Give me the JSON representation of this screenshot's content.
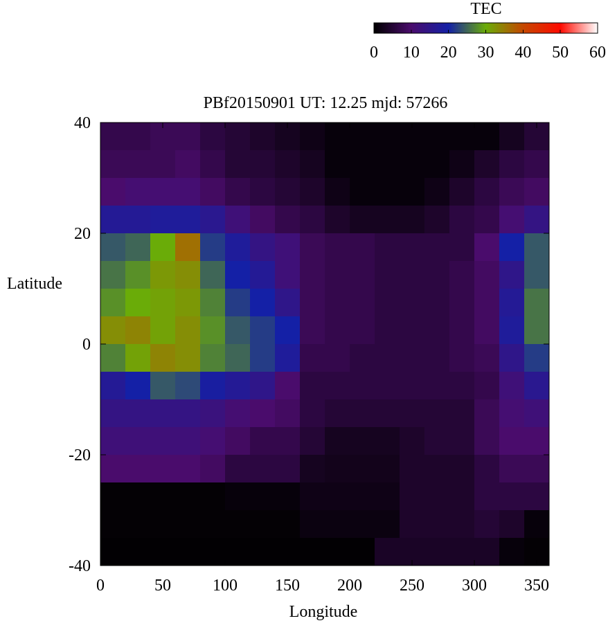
{
  "chart_data": {
    "type": "heatmap",
    "title": "PBf20150901  UT: 12.25  mjd: 57266",
    "x_label": "Longitude",
    "y_label": "Latitude",
    "x": [
      10,
      30,
      50,
      70,
      90,
      110,
      130,
      150,
      170,
      190,
      210,
      230,
      250,
      270,
      290,
      310,
      330,
      350
    ],
    "y": [
      37.5,
      32.5,
      27.5,
      22.5,
      17.5,
      12.5,
      7.5,
      2.5,
      -2.5,
      -7.5,
      -12.5,
      -17.5,
      -22.5,
      -27.5,
      -32.5,
      -37.5
    ],
    "values": [
      [
        7,
        7,
        8,
        8,
        6,
        5,
        4,
        3,
        2,
        1,
        1,
        1,
        1,
        1,
        1,
        1,
        3,
        5
      ],
      [
        8,
        8,
        8,
        9,
        7,
        5,
        5,
        4,
        3,
        1,
        1,
        1,
        1,
        1,
        2,
        4,
        6,
        7
      ],
      [
        10,
        11,
        11,
        11,
        9,
        7,
        6,
        5,
        4,
        2,
        1,
        1,
        1,
        2,
        4,
        6,
        8,
        9
      ],
      [
        17,
        17,
        18,
        18,
        16,
        12,
        9,
        7,
        6,
        4,
        3,
        3,
        3,
        4,
        6,
        7,
        11,
        14
      ],
      [
        24,
        25,
        30,
        36,
        22,
        18,
        14,
        12,
        8,
        7,
        7,
        6,
        6,
        6,
        6,
        10,
        20,
        24
      ],
      [
        26,
        28,
        32,
        33,
        25,
        20,
        17,
        12,
        8,
        7,
        7,
        6,
        6,
        6,
        7,
        9,
        15,
        24
      ],
      [
        28,
        30,
        31,
        32,
        27,
        22,
        20,
        15,
        8,
        7,
        7,
        6,
        6,
        6,
        7,
        9,
        17,
        26
      ],
      [
        33,
        34,
        31,
        33,
        28,
        24,
        22,
        20,
        8,
        7,
        7,
        6,
        6,
        6,
        7,
        9,
        18,
        26
      ],
      [
        27,
        31,
        34,
        33,
        27,
        25,
        22,
        18,
        7,
        7,
        6,
        6,
        6,
        6,
        7,
        8,
        15,
        22
      ],
      [
        17,
        20,
        24,
        23,
        19,
        17,
        15,
        10,
        6,
        6,
        6,
        6,
        6,
        6,
        6,
        7,
        12,
        16
      ],
      [
        14,
        14,
        14,
        14,
        13,
        11,
        10,
        9,
        6,
        5,
        5,
        5,
        5,
        5,
        5,
        8,
        11,
        12
      ],
      [
        12,
        12,
        12,
        12,
        11,
        9,
        7,
        7,
        5,
        3,
        3,
        3,
        4,
        5,
        5,
        8,
        10,
        10
      ],
      [
        10,
        10,
        10,
        10,
        9,
        6,
        6,
        6,
        3,
        2.5,
        2.5,
        2.5,
        4,
        4,
        4,
        6,
        8,
        8
      ],
      [
        0.5,
        0.5,
        0.5,
        0.5,
        0.5,
        1,
        1,
        1,
        2,
        2,
        2,
        2,
        4,
        4,
        4,
        6,
        6,
        6
      ],
      [
        0.5,
        0.5,
        0.5,
        0.5,
        0.5,
        0.5,
        0.5,
        0.5,
        1.5,
        1.5,
        1.5,
        1.5,
        4,
        4,
        4,
        5,
        4,
        1
      ],
      [
        0.3,
        0.3,
        0.3,
        0.3,
        0.3,
        0.3,
        0.3,
        0.3,
        0.3,
        0.3,
        0.3,
        3.5,
        3.5,
        3.5,
        3.5,
        3.5,
        1,
        0.5
      ]
    ],
    "xlim": [
      0,
      360
    ],
    "ylim": [
      -40,
      40
    ],
    "xticks": [
      0,
      50,
      100,
      150,
      200,
      250,
      300,
      350
    ],
    "yticks": [
      -40,
      -20,
      0,
      20,
      40
    ],
    "colorbar": {
      "label": "TEC",
      "lim": [
        0,
        60
      ],
      "ticks": [
        0,
        10,
        20,
        30,
        40,
        50,
        60
      ],
      "colormap": [
        "#000000",
        "#4a0c6c",
        "#1420a6",
        "#6aac08",
        "#c44800",
        "#ff0a00",
        "#ffffff"
      ]
    }
  }
}
